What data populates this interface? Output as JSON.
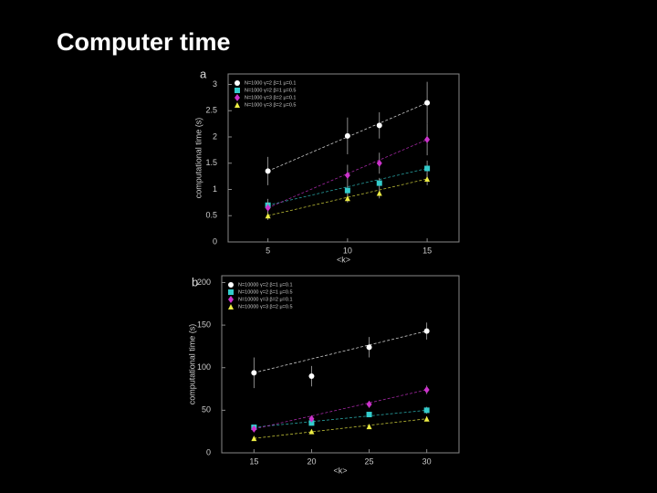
{
  "title": "Computer time",
  "chart_data": [
    {
      "type": "scatter",
      "panel": "a",
      "xlabel": "<k>",
      "ylabel": "computational time (s)",
      "xlim": [
        2.5,
        17
      ],
      "ylim": [
        0,
        3.2
      ],
      "xticks": [
        5,
        10,
        15
      ],
      "yticks": [
        0,
        0.5,
        1,
        1.5,
        2,
        2.5,
        3
      ],
      "legend": "upper left",
      "x": [
        5,
        10,
        12,
        15
      ],
      "series": [
        {
          "name": "N=1000  γ=2  β=1  μ=0.1",
          "color": "#ffffff",
          "marker": "circle",
          "values": [
            1.35,
            2.02,
            2.22,
            2.65
          ],
          "errors": [
            0.27,
            0.35,
            0.25,
            0.4
          ]
        },
        {
          "name": "N=1000  γ=2  β=1  μ=0.5",
          "color": "#33cccc",
          "marker": "square",
          "values": [
            0.7,
            0.98,
            1.12,
            1.4
          ],
          "errors": [
            0.12,
            0.1,
            0.1,
            0.15
          ]
        },
        {
          "name": "N=1000  γ=3  β=2  μ=0.1",
          "color": "#cc33cc",
          "marker": "diamond",
          "values": [
            0.65,
            1.27,
            1.5,
            1.95
          ],
          "errors": [
            0.1,
            0.2,
            0.2,
            0.3
          ]
        },
        {
          "name": "N=1000  γ=3  β=2  μ=0.5",
          "color": "#eeee44",
          "marker": "triangle",
          "values": [
            0.5,
            0.83,
            0.93,
            1.2
          ],
          "errors": [
            0.08,
            0.08,
            0.1,
            0.12
          ]
        }
      ]
    },
    {
      "type": "scatter",
      "panel": "b",
      "xlabel": "<k>",
      "ylabel": "computational time (s)",
      "xlim": [
        12.2,
        32.8
      ],
      "ylim": [
        0,
        208
      ],
      "xticks": [
        15,
        20,
        25,
        30
      ],
      "yticks": [
        0,
        50,
        100,
        150,
        200
      ],
      "legend": "upper left",
      "x": [
        15,
        20,
        25,
        30
      ],
      "series": [
        {
          "name": "N=10000  γ=2  β=1  μ=0.1",
          "color": "#ffffff",
          "marker": "circle",
          "values": [
            94,
            90,
            124,
            143
          ],
          "errors": [
            18,
            12,
            12,
            10
          ]
        },
        {
          "name": "N=10000  γ=2  β=1  μ=0.5",
          "color": "#33cccc",
          "marker": "square",
          "values": [
            30,
            35,
            45,
            50
          ],
          "errors": [
            3,
            3,
            3,
            4
          ]
        },
        {
          "name": "N=10000  γ=3  β=2  μ=0.1",
          "color": "#cc33cc",
          "marker": "diamond",
          "values": [
            28,
            40,
            57,
            74
          ],
          "errors": [
            3,
            3,
            4,
            5
          ]
        },
        {
          "name": "N=10000  γ=3  β=2  μ=0.5",
          "color": "#eeee44",
          "marker": "triangle",
          "values": [
            17,
            25,
            31,
            40
          ],
          "errors": [
            2,
            2,
            2,
            3
          ]
        }
      ]
    }
  ]
}
